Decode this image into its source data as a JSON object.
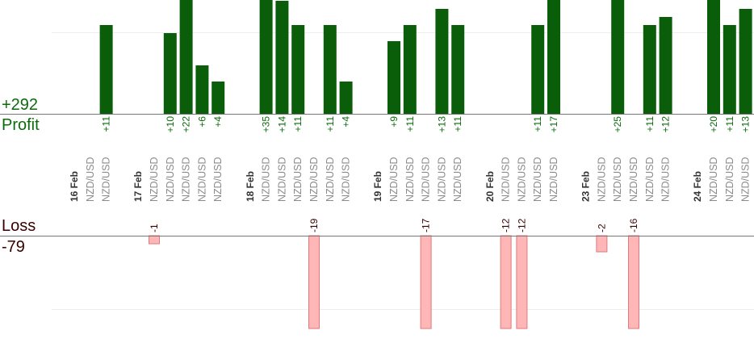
{
  "summary": {
    "profit_label": "Profit",
    "profit_total": "+292",
    "loss_label": "Loss",
    "loss_total": "-79"
  },
  "colors": {
    "profit_bar": "#0a5e0a",
    "profit_text": "#0b6b0b",
    "loss_bar_fill": "#ffb6b6",
    "loss_bar_stroke": "#e07a7a",
    "loss_text": "#3a0000",
    "date_text": "#333333",
    "pair_text": "#8a8a8a",
    "axis": "#777777",
    "grid": "#eeeeee"
  },
  "chart_data": {
    "type": "bar",
    "title": "",
    "xlabel": "",
    "ylabel": "",
    "grid": true,
    "profit_ylim": [
      0,
      11
    ],
    "loss_ylim": [
      -11,
      0
    ],
    "slots": [
      {
        "label": "16 Feb",
        "kind": "date"
      },
      {
        "label": "NZD/USD",
        "kind": "trade"
      },
      {
        "label": "NZD/USD",
        "kind": "trade",
        "value": 11,
        "value_label": "+11"
      },
      {
        "label": "",
        "kind": "gap"
      },
      {
        "label": "17 Feb",
        "kind": "date"
      },
      {
        "label": "NZD/USD",
        "kind": "trade",
        "value": -1,
        "value_label": "-1"
      },
      {
        "label": "NZD/USD",
        "kind": "trade",
        "value": 10,
        "value_label": "+10"
      },
      {
        "label": "NZD/USD",
        "kind": "trade",
        "value": 22,
        "value_label": "+22"
      },
      {
        "label": "NZD/USD",
        "kind": "trade",
        "value": 6,
        "value_label": "+6"
      },
      {
        "label": "NZD/USD",
        "kind": "trade",
        "value": 4,
        "value_label": "+4"
      },
      {
        "label": "",
        "kind": "gap"
      },
      {
        "label": "18 Feb",
        "kind": "date"
      },
      {
        "label": "NZD/USD",
        "kind": "trade",
        "value": 35,
        "value_label": "+35"
      },
      {
        "label": "NZD/USD",
        "kind": "trade",
        "value": 14,
        "value_label": "+14"
      },
      {
        "label": "NZD/USD",
        "kind": "trade",
        "value": 11,
        "value_label": "+11"
      },
      {
        "label": "NZD/USD",
        "kind": "trade",
        "value": -19,
        "value_label": "-19"
      },
      {
        "label": "NZD/USD",
        "kind": "trade",
        "value": 11,
        "value_label": "+11"
      },
      {
        "label": "NZD/USD",
        "kind": "trade",
        "value": 4,
        "value_label": "+4"
      },
      {
        "label": "",
        "kind": "gap"
      },
      {
        "label": "19 Feb",
        "kind": "date"
      },
      {
        "label": "NZD/USD",
        "kind": "trade",
        "value": 9,
        "value_label": "+9"
      },
      {
        "label": "NZD/USD",
        "kind": "trade",
        "value": 11,
        "value_label": "+11"
      },
      {
        "label": "NZD/USD",
        "kind": "trade",
        "value": -17,
        "value_label": "-17"
      },
      {
        "label": "NZD/USD",
        "kind": "trade",
        "value": 13,
        "value_label": "+13"
      },
      {
        "label": "NZD/USD",
        "kind": "trade",
        "value": 11,
        "value_label": "+11"
      },
      {
        "label": "",
        "kind": "gap"
      },
      {
        "label": "20 Feb",
        "kind": "date"
      },
      {
        "label": "NZD/USD",
        "kind": "trade",
        "value": -12,
        "value_label": "-12"
      },
      {
        "label": "NZD/USD",
        "kind": "trade",
        "value": -12,
        "value_label": "-12"
      },
      {
        "label": "NZD/USD",
        "kind": "trade",
        "value": 11,
        "value_label": "+11"
      },
      {
        "label": "NZD/USD",
        "kind": "trade",
        "value": 17,
        "value_label": "+17"
      },
      {
        "label": "",
        "kind": "gap"
      },
      {
        "label": "23 Feb",
        "kind": "date"
      },
      {
        "label": "NZD/USD",
        "kind": "trade",
        "value": -2,
        "value_label": "-2"
      },
      {
        "label": "NZD/USD",
        "kind": "trade",
        "value": 25,
        "value_label": "+25"
      },
      {
        "label": "NZD/USD",
        "kind": "trade",
        "value": -16,
        "value_label": "-16"
      },
      {
        "label": "NZD/USD",
        "kind": "trade",
        "value": 11,
        "value_label": "+11"
      },
      {
        "label": "NZD/USD",
        "kind": "trade",
        "value": 12,
        "value_label": "+12"
      },
      {
        "label": "",
        "kind": "gap"
      },
      {
        "label": "24 Feb",
        "kind": "date"
      },
      {
        "label": "NZD/USD",
        "kind": "trade",
        "value": 20,
        "value_label": "+20"
      },
      {
        "label": "NZD/USD",
        "kind": "trade",
        "value": 11,
        "value_label": "+11"
      },
      {
        "label": "NZD/USD",
        "kind": "trade",
        "value": 13,
        "value_label": "+13"
      }
    ]
  }
}
